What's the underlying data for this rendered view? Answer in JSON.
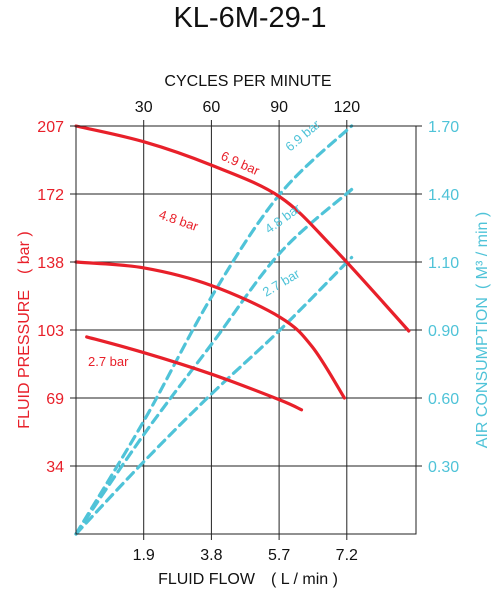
{
  "title": "KL-6M-29-1",
  "colors": {
    "pressure": "#e8202a",
    "air": "#4fc3d8",
    "axis": "#222222",
    "grid": "#222222"
  },
  "chart_data": {
    "type": "line",
    "title": "KL-6M-29-1",
    "grid": true,
    "xlabel_bottom": "FLUID FLOW　( L / min )",
    "xlabel_top": "CYCLES PER MINUTE",
    "ylabel_left": "FLUID PRESSURE　( bar )",
    "ylabel_right_main": "AIR CONSUMPTION",
    "ylabel_right_unit": "( M³ / min )",
    "x_ticks_bottom": [
      "1.9",
      "3.8",
      "5.7",
      "7.2"
    ],
    "x_ticks_top": [
      "30",
      "60",
      "90",
      "120"
    ],
    "y_ticks_left": [
      "34",
      "69",
      "103",
      "138",
      "172",
      "207"
    ],
    "y_ticks_right": [
      "0.30",
      "0.60",
      "0.90",
      "1.10",
      "1.40",
      "1.70"
    ],
    "pressure_series": [
      {
        "name": "6.9 bar",
        "label": "6.9 bar",
        "points": [
          [
            0,
            207
          ],
          [
            1.9,
            199
          ],
          [
            3.8,
            187
          ],
          [
            5.7,
            171
          ],
          [
            7.2,
            145
          ],
          [
            9.3,
            103
          ]
        ]
      },
      {
        "name": "4.8 bar",
        "label": "4.8 bar",
        "points": [
          [
            0,
            138
          ],
          [
            1.9,
            135
          ],
          [
            3.8,
            126
          ],
          [
            5.7,
            110
          ],
          [
            6.6,
            95
          ],
          [
            7.5,
            69
          ]
        ]
      },
      {
        "name": "2.7 bar",
        "label": "2.7 bar",
        "points": [
          [
            0.3,
            100
          ],
          [
            1.9,
            92
          ],
          [
            3.8,
            81
          ],
          [
            5.7,
            68
          ],
          [
            6.3,
            63
          ]
        ]
      }
    ],
    "air_series": [
      {
        "name": "6.9 bar",
        "label": "6.9 bar",
        "points": [
          [
            0,
            0
          ],
          [
            1.9,
            0.5
          ],
          [
            3.8,
            1.0
          ],
          [
            5.7,
            1.4
          ],
          [
            7.7,
            1.7
          ]
        ]
      },
      {
        "name": "4.8 bar",
        "label": "4.8 bar",
        "points": [
          [
            0,
            0
          ],
          [
            1.9,
            0.44
          ],
          [
            3.8,
            0.84
          ],
          [
            5.7,
            1.14
          ],
          [
            7.7,
            1.42
          ]
        ]
      },
      {
        "name": "2.7 bar",
        "label": "2.7 bar",
        "points": [
          [
            0,
            0
          ],
          [
            1.9,
            0.32
          ],
          [
            3.8,
            0.62
          ],
          [
            5.7,
            0.9
          ],
          [
            7.7,
            1.12
          ]
        ]
      }
    ]
  }
}
